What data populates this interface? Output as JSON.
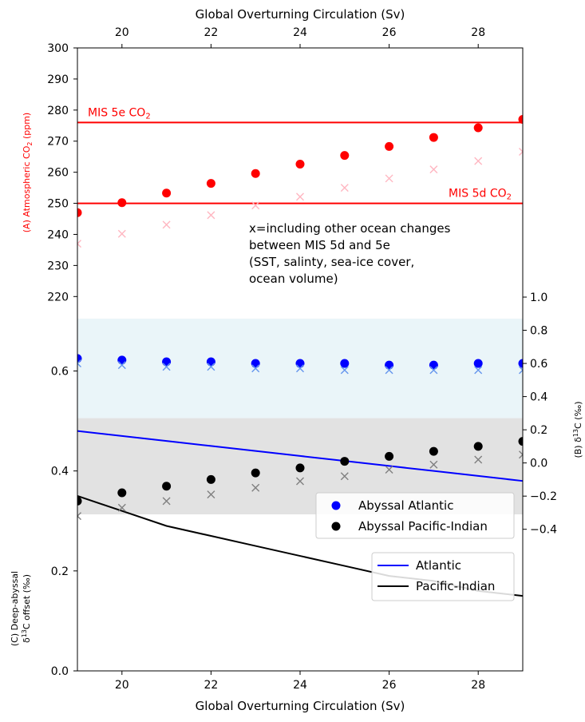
{
  "chart_data": {
    "type": "scatter",
    "x_axis": {
      "label": "Global Overturning Circulation (Sv)",
      "xlim": [
        19,
        29
      ],
      "ticks": [
        20,
        22,
        24,
        26,
        28
      ],
      "tick_labels": [
        "20",
        "22",
        "24",
        "26",
        "28"
      ]
    },
    "x": [
      19,
      20,
      21,
      22,
      23,
      24,
      25,
      26,
      27,
      28,
      29
    ],
    "panels": [
      {
        "id": "A",
        "ylabel_prefix": "(A) Atmospheric CO",
        "ylabel_sub": "2",
        "ylabel_suffix": " (ppm)",
        "ylim": [
          212,
          300
        ],
        "ticks": [
          220,
          230,
          240,
          250,
          260,
          270,
          280,
          290,
          300
        ],
        "tick_labels": [
          "220",
          "230",
          "240",
          "250",
          "260",
          "270",
          "280",
          "290",
          "300"
        ],
        "series": [
          {
            "values": [
              247,
              250.2,
              253.3,
              256.4,
              259.6,
              262.6,
              265.4,
              268.3,
              271.2,
              274.3,
              277
            ],
            "marker": "circle",
            "color": "#ff0000"
          },
          {
            "values": [
              237,
              240.2,
              243.1,
              246.2,
              249.3,
              252.1,
              255,
              258,
              260.9,
              263.6,
              266.6
            ],
            "marker": "x",
            "color": "#ffb6c1"
          }
        ],
        "hlines": [
          {
            "y": 276,
            "color": "#ff0000",
            "label_main": "MIS 5e CO",
            "label_sub": "2",
            "label_pos": "left"
          },
          {
            "y": 250,
            "color": "#ff0000",
            "label_main": "MIS 5d CO",
            "label_sub": "2",
            "label_pos": "right"
          }
        ],
        "annotation": [
          "x=including other ocean changes",
          "between MIS 5d and 5e",
          "(SST, salinty, sea-ice cover,",
          "ocean volume)"
        ]
      },
      {
        "id": "B",
        "ylabel_prefix": "(B) δ",
        "ylabel_sup": "13",
        "ylabel_suffix": "C (‰)",
        "ylim": [
          -0.4,
          1.0
        ],
        "ticks": [
          -0.4,
          -0.2,
          0.0,
          0.2,
          0.4,
          0.6,
          0.8,
          1.0
        ],
        "tick_labels": [
          "−0.4",
          "−0.2",
          "0.0",
          "0.2",
          "0.4",
          "0.6",
          "0.8",
          "1.0"
        ],
        "bands": [
          {
            "from": 0.27,
            "to": 0.87,
            "color": "#add8e6",
            "opacity": 0.25
          },
          {
            "from": -0.31,
            "to": 0.27,
            "color": "#a0a0a0",
            "opacity": 0.3
          }
        ],
        "series": [
          {
            "name": "Abyssal Atlantic",
            "values": [
              0.63,
              0.62,
              0.61,
              0.61,
              0.6,
              0.6,
              0.6,
              0.59,
              0.59,
              0.6,
              0.6
            ],
            "marker": "circle",
            "color": "#0000ff"
          },
          {
            "values": [
              0.6,
              0.59,
              0.58,
              0.58,
              0.57,
              0.57,
              0.56,
              0.56,
              0.56,
              0.56,
              0.56
            ],
            "marker": "x",
            "color": "#6495ed"
          },
          {
            "name": "Abyssal Pacific-Indian",
            "values": [
              -0.23,
              -0.18,
              -0.14,
              -0.1,
              -0.06,
              -0.03,
              0.01,
              0.04,
              0.07,
              0.1,
              0.13
            ],
            "marker": "circle",
            "color": "#000000"
          },
          {
            "values": [
              -0.32,
              -0.27,
              -0.23,
              -0.19,
              -0.15,
              -0.11,
              -0.08,
              -0.04,
              -0.01,
              0.02,
              0.05
            ],
            "marker": "x",
            "color": "#808080"
          }
        ]
      },
      {
        "id": "C",
        "ylabel_line1": "(C) Deep-abyssal",
        "ylabel_prefix": "δ",
        "ylabel_sup": "13",
        "ylabel_suffix": "C offset (‰)",
        "ylim": [
          0.0,
          0.78
        ],
        "ticks": [
          0.0,
          0.2,
          0.4,
          0.6
        ],
        "tick_labels": [
          "0.0",
          "0.2",
          "0.4",
          "0.6"
        ],
        "series": [
          {
            "name": "Atlantic",
            "values": [
              0.48,
              0.47,
              0.46,
              0.45,
              0.44,
              0.43,
              0.42,
              0.41,
              0.4,
              0.39,
              0.38
            ],
            "marker": "line",
            "color": "#0000ff"
          },
          {
            "name": "Pacific-Indian",
            "values": [
              0.35,
              0.32,
              0.29,
              0.27,
              0.25,
              0.23,
              0.21,
              0.19,
              0.18,
              0.16,
              0.15
            ],
            "marker": "line",
            "color": "#000000"
          }
        ]
      }
    ],
    "legends": [
      {
        "panel": "B",
        "placement": "lower-right",
        "entries": [
          "Abyssal Atlantic",
          "Abyssal Pacific-Indian"
        ]
      },
      {
        "panel": "C",
        "placement": "upper-right",
        "entries": [
          "Atlantic",
          "Pacific-Indian"
        ]
      }
    ]
  }
}
